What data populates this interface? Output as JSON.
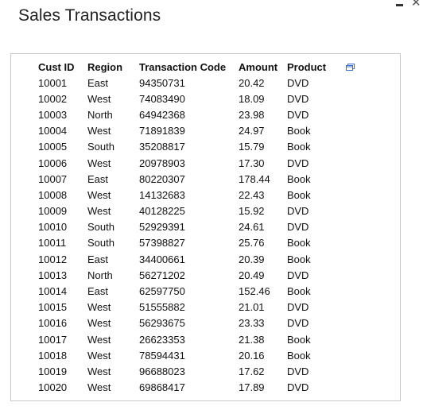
{
  "window": {
    "title": "Sales Transactions",
    "minimize_icon": "minimize-icon",
    "close_icon": "close-icon",
    "close_glyph": "✕"
  },
  "table": {
    "popout_icon": "popout-icon",
    "columns": [
      "Cust ID",
      "Region",
      "Transaction Code",
      "Amount",
      "Product"
    ],
    "rows": [
      [
        "10001",
        "East",
        "94350731",
        "20.42",
        "DVD"
      ],
      [
        "10002",
        "West",
        "74083490",
        "18.09",
        "DVD"
      ],
      [
        "10003",
        "North",
        "64942368",
        "23.98",
        "DVD"
      ],
      [
        "10004",
        "West",
        "71891839",
        "24.97",
        "Book"
      ],
      [
        "10005",
        "South",
        "35208817",
        "15.79",
        "Book"
      ],
      [
        "10006",
        "West",
        "20978903",
        "17.30",
        "DVD"
      ],
      [
        "10007",
        "East",
        "80220307",
        "178.44",
        "Book"
      ],
      [
        "10008",
        "West",
        "14132683",
        "22.43",
        "Book"
      ],
      [
        "10009",
        "West",
        "40128225",
        "15.92",
        "DVD"
      ],
      [
        "10010",
        "South",
        "52929391",
        "24.61",
        "DVD"
      ],
      [
        "10011",
        "South",
        "57398827",
        "25.76",
        "Book"
      ],
      [
        "10012",
        "East",
        "34400661",
        "20.39",
        "Book"
      ],
      [
        "10013",
        "North",
        "56271202",
        "20.49",
        "DVD"
      ],
      [
        "10014",
        "East",
        "62597750",
        "152.46",
        "Book"
      ],
      [
        "10015",
        "West",
        "51555882",
        "21.01",
        "DVD"
      ],
      [
        "10016",
        "West",
        "56293675",
        "23.33",
        "DVD"
      ],
      [
        "10017",
        "West",
        "26623353",
        "21.38",
        "Book"
      ],
      [
        "10018",
        "West",
        "78594431",
        "20.16",
        "Book"
      ],
      [
        "10019",
        "West",
        "96688023",
        "17.62",
        "DVD"
      ],
      [
        "10020",
        "West",
        "69868417",
        "17.89",
        "DVD"
      ]
    ]
  },
  "colors": {
    "text": "#111111",
    "border": "#c8c8c8",
    "icon_blue": "#3a6fd0"
  }
}
